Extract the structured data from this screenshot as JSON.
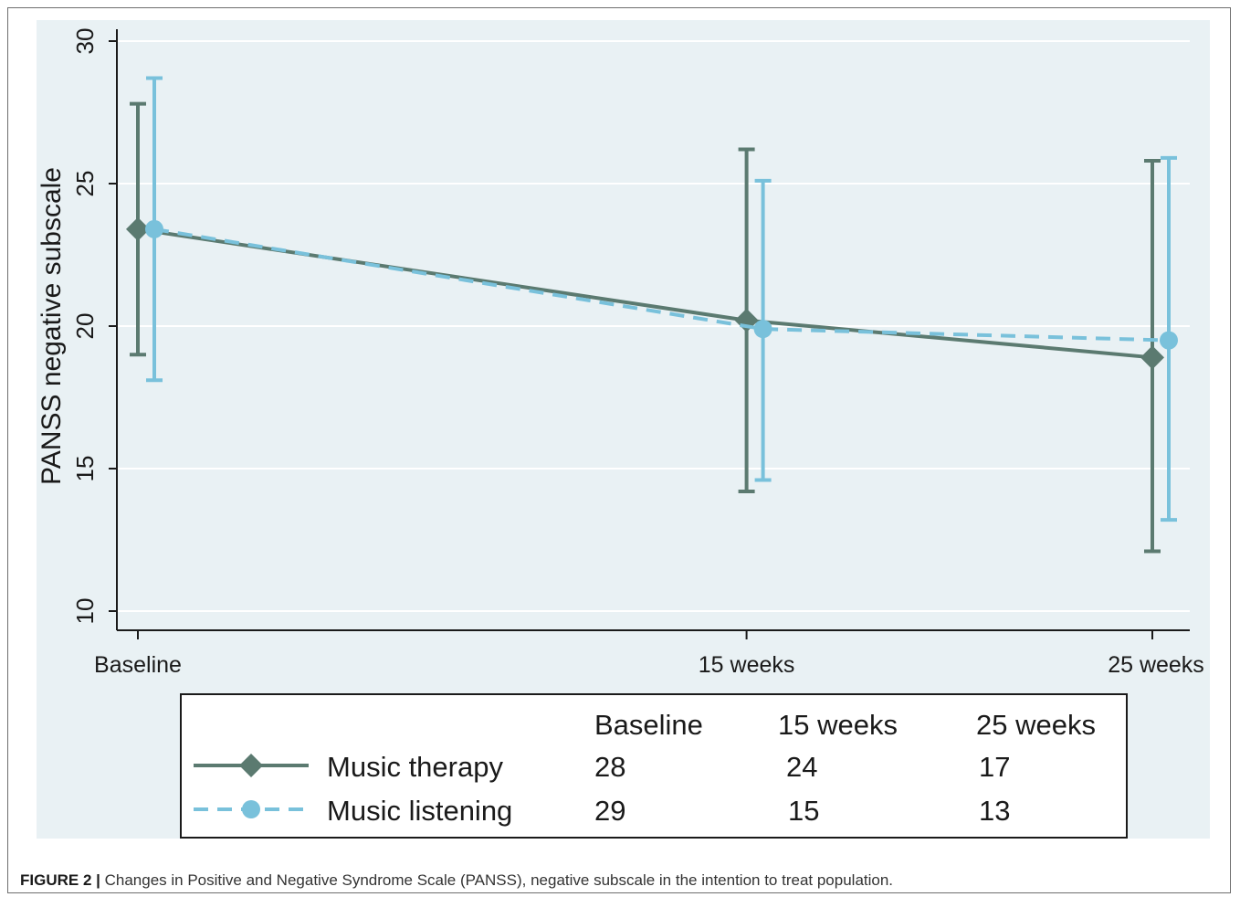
{
  "colors": {
    "plot_background": "#e9f1f4",
    "therapy": "#5b7a70",
    "listening": "#79c1db",
    "grid": "#ffffff",
    "axis": "#1a1a1a"
  },
  "chart_data": {
    "type": "line",
    "title": "",
    "xlabel": "",
    "ylabel": "PANSS negative subscale",
    "ylim": [
      10,
      30
    ],
    "yticks": [
      10,
      15,
      20,
      25,
      30
    ],
    "y_gridlines": true,
    "x_ticks": [
      {
        "label": "Baseline",
        "week": 0
      },
      {
        "label": "15 weeks",
        "week": 15
      },
      {
        "label": "25 weeks",
        "week": 25
      }
    ],
    "series": [
      {
        "name": "Music therapy",
        "marker": "diamond",
        "line_style": "solid",
        "color": "#5b7a70",
        "points": [
          {
            "x": "Baseline",
            "mean": 23.4,
            "lower": 19.0,
            "upper": 27.8
          },
          {
            "x": "15 weeks",
            "mean": 20.2,
            "lower": 14.2,
            "upper": 26.2
          },
          {
            "x": "25 weeks",
            "mean": 18.9,
            "lower": 12.1,
            "upper": 25.8
          }
        ]
      },
      {
        "name": "Music listening",
        "marker": "circle",
        "line_style": "dashed",
        "color": "#79c1db",
        "points": [
          {
            "x": "Baseline",
            "mean": 23.4,
            "lower": 18.1,
            "upper": 28.7
          },
          {
            "x": "15 weeks",
            "mean": 19.9,
            "lower": 14.6,
            "upper": 25.1
          },
          {
            "x": "25 weeks",
            "mean": 19.5,
            "lower": 13.2,
            "upper": 25.9
          }
        ]
      }
    ],
    "legend": {
      "placement": "bottom",
      "headers": [
        "Baseline",
        "15 weeks",
        "25 weeks"
      ],
      "rows": [
        {
          "name": "Music therapy",
          "counts": [
            "28",
            "24",
            "17"
          ]
        },
        {
          "name": "Music listening",
          "counts": [
            "29",
            "15",
            "13"
          ]
        }
      ]
    }
  },
  "caption": {
    "label": "FIGURE 2 |",
    "text": " Changes in Positive and Negative Syndrome Scale (PANSS), negative subscale in the intention to treat population."
  }
}
